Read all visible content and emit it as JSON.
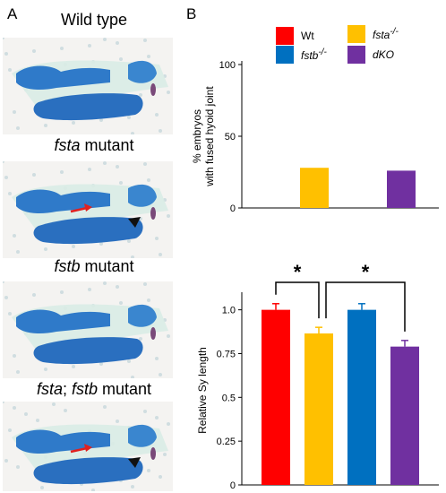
{
  "panel_a": {
    "letter": "A",
    "panels": [
      {
        "title_html": "Wild type",
        "has_arrow": false,
        "has_arrowhead": false
      },
      {
        "title_html": "<i>fsta</i> mutant",
        "has_arrow": true,
        "has_arrowhead": true
      },
      {
        "title_html": "<i>fstb</i> mutant",
        "has_arrow": false,
        "has_arrowhead": false
      },
      {
        "title_html": "<i>fsta</i>; <i>fstb</i> mutant",
        "has_arrow": true,
        "has_arrowhead": true
      }
    ]
  },
  "panel_b": {
    "letter": "B",
    "legend": [
      {
        "label_html": "Wt",
        "color": "#ff0000"
      },
      {
        "label_html": "<i>fsta<sup>-/-</sup></i>",
        "color": "#ffc000"
      },
      {
        "label_html": "<i>fstb<sup>-/-</sup></i>",
        "color": "#0070c0"
      },
      {
        "label_html": "<i>dKO</i>",
        "color": "#7030a0"
      }
    ]
  },
  "chart_data": [
    {
      "type": "bar",
      "categories": [
        "Wt",
        "fsta-/-",
        "fstb-/-",
        "dKO"
      ],
      "values": [
        0,
        28,
        0,
        26
      ],
      "colors": [
        "#ff0000",
        "#ffc000",
        "#0070c0",
        "#7030a0"
      ],
      "ylabel_lines": [
        "% embryos",
        "with fused hyoid joint"
      ],
      "ylim": [
        0,
        100
      ],
      "yticks": [
        0,
        50,
        100
      ],
      "ytick_labels": [
        "0",
        "50",
        "100"
      ]
    },
    {
      "type": "bar",
      "categories": [
        "Wt",
        "fsta-/-",
        "fstb-/-",
        "dKO"
      ],
      "values": [
        1.0,
        0.865,
        1.0,
        0.79
      ],
      "errors": [
        0.035,
        0.035,
        0.035,
        0.035
      ],
      "colors": [
        "#ff0000",
        "#ffc000",
        "#0070c0",
        "#7030a0"
      ],
      "ylabel": "Relative Sy length",
      "ylim": [
        0,
        1.08
      ],
      "yticks": [
        0,
        0.25,
        0.5,
        0.75,
        1.0
      ],
      "ytick_labels": [
        "0",
        "0.25",
        "0.5",
        "0.75",
        "1.0"
      ],
      "significance": [
        {
          "from": 0,
          "to": 1,
          "label": "*"
        },
        {
          "from": 1,
          "to": 3,
          "label": "*"
        }
      ]
    }
  ]
}
